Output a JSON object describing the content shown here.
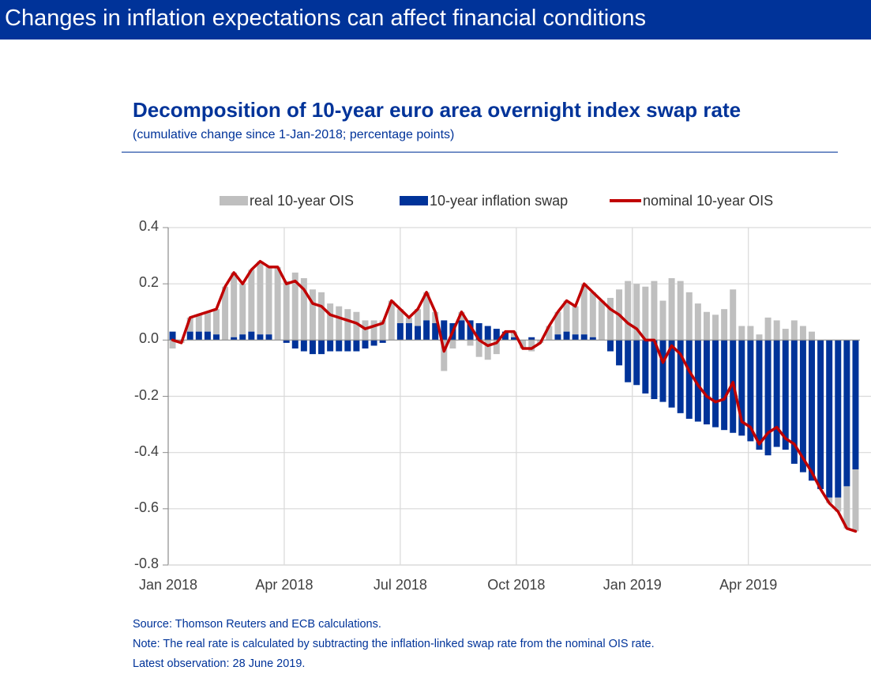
{
  "banner": {
    "title": "Changes in inflation expectations can affect financial conditions"
  },
  "colors": {
    "banner": "#003399",
    "real": "#BFBFBF",
    "inflation": "#003399",
    "nominal": "#C00000",
    "text": "#003399"
  },
  "chart_data": {
    "type": "bar+line",
    "title": "Decomposition of  10-year euro area overnight index swap rate",
    "subtitle": "(cumulative change since 1-Jan-2018; percentage points)",
    "xlabel": "",
    "ylabel": "",
    "ylim": [
      -0.8,
      0.4
    ],
    "yticks": [
      0.4,
      0.2,
      0.0,
      -0.2,
      -0.4,
      -0.6,
      -0.8
    ],
    "ytick_labels": [
      "0.4",
      "0.2",
      "0.0",
      "-0.2",
      "-0.4",
      "-0.6",
      "-0.8"
    ],
    "xticks": [
      "Jan 2018",
      "Apr 2018",
      "Jul 2018",
      "Oct 2018",
      "Jan 2019",
      "Apr 2019"
    ],
    "xtick_positions_weeks": [
      0,
      13,
      26,
      39,
      52,
      65
    ],
    "grid": true,
    "legend_position": "top",
    "legend": [
      {
        "label": "real 10-year OIS",
        "kind": "bar",
        "color": "#BFBFBF"
      },
      {
        "label": "10-year inflation swap",
        "kind": "bar",
        "color": "#003399"
      },
      {
        "label": "nominal 10-year OIS",
        "kind": "line",
        "color": "#C00000"
      }
    ],
    "x_unit": "weeks since 1-Jan-2018",
    "x_range": [
      0,
      77.5
    ],
    "series": [
      {
        "name": "nominal 10-year OIS",
        "type": "line",
        "values": [
          0.0,
          -0.01,
          0.08,
          0.09,
          0.1,
          0.11,
          0.19,
          0.24,
          0.2,
          0.25,
          0.28,
          0.26,
          0.26,
          0.2,
          0.21,
          0.18,
          0.13,
          0.12,
          0.09,
          0.08,
          0.07,
          0.06,
          0.04,
          0.05,
          0.06,
          0.14,
          0.11,
          0.08,
          0.11,
          0.17,
          0.1,
          -0.04,
          0.03,
          0.1,
          0.05,
          0.0,
          -0.02,
          -0.01,
          0.03,
          0.03,
          -0.03,
          -0.03,
          -0.01,
          0.05,
          0.1,
          0.14,
          0.12,
          0.2,
          0.17,
          0.14,
          0.11,
          0.09,
          0.06,
          0.04,
          0.0,
          0.0,
          -0.08,
          -0.02,
          -0.05,
          -0.11,
          -0.16,
          -0.2,
          -0.22,
          -0.21,
          -0.15,
          -0.29,
          -0.31,
          -0.37,
          -0.33,
          -0.31,
          -0.35,
          -0.37,
          -0.42,
          -0.47,
          -0.53,
          -0.58,
          -0.61,
          -0.67,
          -0.68
        ]
      },
      {
        "name": "10-year inflation swap",
        "type": "bar",
        "values": [
          0.03,
          0.0,
          0.03,
          0.03,
          0.03,
          0.02,
          0.0,
          0.01,
          0.02,
          0.03,
          0.02,
          0.02,
          0.0,
          -0.01,
          -0.03,
          -0.04,
          -0.05,
          -0.05,
          -0.04,
          -0.04,
          -0.04,
          -0.04,
          -0.03,
          -0.02,
          -0.01,
          0.0,
          0.06,
          0.06,
          0.05,
          0.07,
          0.06,
          0.07,
          0.06,
          0.07,
          0.07,
          0.06,
          0.05,
          0.04,
          0.03,
          0.01,
          0.0,
          0.01,
          0.0,
          0.0,
          0.02,
          0.03,
          0.02,
          0.02,
          0.01,
          0.0,
          -0.04,
          -0.09,
          -0.15,
          -0.16,
          -0.19,
          -0.21,
          -0.22,
          -0.24,
          -0.26,
          -0.28,
          -0.29,
          -0.3,
          -0.31,
          -0.32,
          -0.33,
          -0.34,
          -0.36,
          -0.39,
          -0.41,
          -0.38,
          -0.39,
          -0.44,
          -0.47,
          -0.5,
          -0.53,
          -0.56,
          -0.56,
          -0.52,
          -0.46
        ]
      },
      {
        "name": "real 10-year OIS",
        "type": "bar",
        "derived": "nominal minus inflation swap"
      }
    ],
    "latest_observation": "28 June 2019"
  },
  "footnotes": [
    "Source: Thomson Reuters and ECB calculations.",
    "Note: The real rate is calculated by subtracting the inflation-linked swap rate from the nominal OIS rate.",
    "Latest observation: 28 June 2019."
  ]
}
